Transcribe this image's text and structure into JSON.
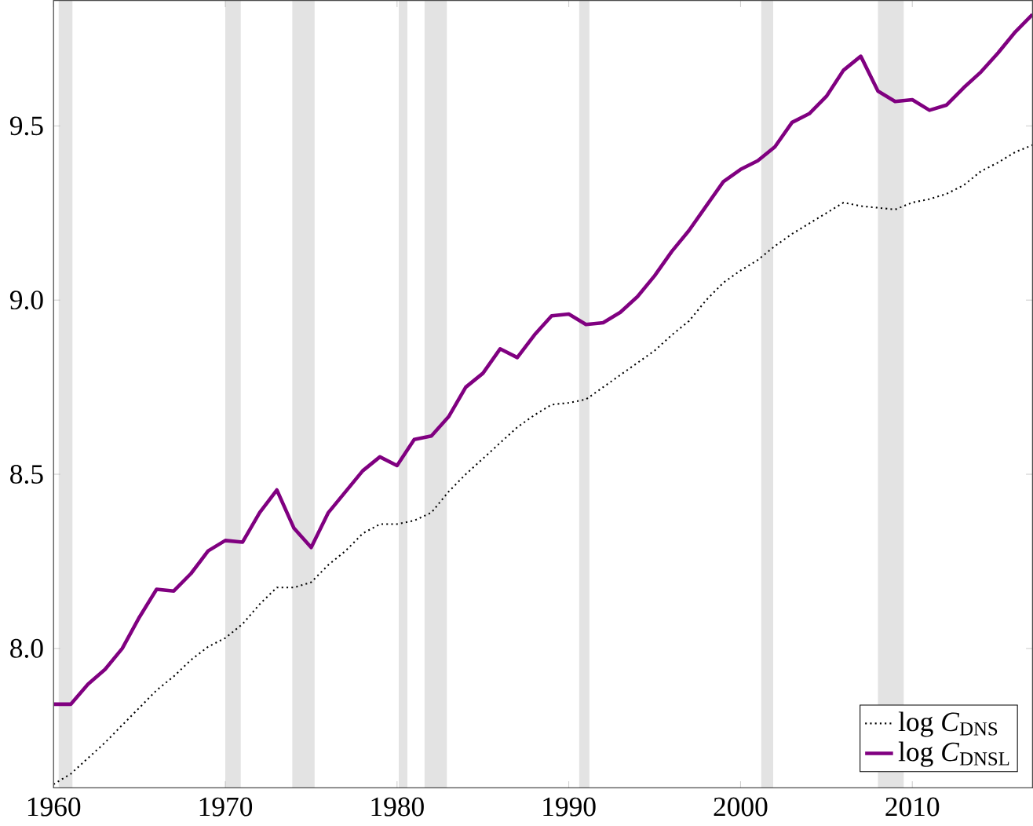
{
  "chart_data": {
    "type": "line",
    "x": [
      1960,
      1961,
      1962,
      1963,
      1964,
      1965,
      1966,
      1967,
      1968,
      1969,
      1970,
      1971,
      1972,
      1973,
      1974,
      1975,
      1976,
      1977,
      1978,
      1979,
      1980,
      1981,
      1982,
      1983,
      1984,
      1985,
      1986,
      1987,
      1988,
      1989,
      1990,
      1991,
      1992,
      1993,
      1994,
      1995,
      1996,
      1997,
      1998,
      1999,
      2000,
      2001,
      2002,
      2003,
      2004,
      2005,
      2006,
      2007,
      2008,
      2009,
      2010,
      2011,
      2012,
      2013,
      2014,
      2015,
      2016,
      2017
    ],
    "series": [
      {
        "name": "log *C*$_{DNS}$",
        "color": "#000000",
        "line_style": "dotted",
        "values": [
          7.61,
          7.64,
          7.685,
          7.73,
          7.78,
          7.83,
          7.88,
          7.92,
          7.967,
          8.005,
          8.03,
          8.07,
          8.127,
          8.175,
          8.175,
          8.19,
          8.24,
          8.28,
          8.33,
          8.357,
          8.357,
          8.367,
          8.39,
          8.45,
          8.5,
          8.545,
          8.59,
          8.635,
          8.67,
          8.7,
          8.705,
          8.715,
          8.75,
          8.785,
          8.82,
          8.855,
          8.9,
          8.94,
          9.0,
          9.05,
          9.085,
          9.115,
          9.155,
          9.19,
          9.22,
          9.25,
          9.28,
          9.27,
          9.265,
          9.26,
          9.28,
          9.29,
          9.305,
          9.33,
          9.37,
          9.395,
          9.425,
          9.445
        ]
      },
      {
        "name": "log *C*$_{DNSL}$",
        "color": "#800080",
        "line_style": "solid",
        "values": [
          7.84,
          7.84,
          7.897,
          7.94,
          8.0,
          8.09,
          8.17,
          8.165,
          8.215,
          8.28,
          8.31,
          8.305,
          8.39,
          8.455,
          8.345,
          8.29,
          8.39,
          8.45,
          8.51,
          8.55,
          8.525,
          8.6,
          8.61,
          8.665,
          8.75,
          8.79,
          8.86,
          8.835,
          8.9,
          8.955,
          8.96,
          8.93,
          8.935,
          8.965,
          9.01,
          9.07,
          9.14,
          9.2,
          9.27,
          9.34,
          9.375,
          9.4,
          9.44,
          9.51,
          9.535,
          9.585,
          9.66,
          9.7,
          9.6,
          9.57,
          9.575,
          9.545,
          9.56,
          9.61,
          9.655,
          9.71,
          9.77,
          9.82
        ]
      }
    ],
    "xlim": [
      1960,
      2017
    ],
    "ylim": [
      7.6,
      9.86
    ],
    "xticks": [
      1960,
      1970,
      1980,
      1990,
      2000,
      2010
    ],
    "yticks": [
      {
        "value": 8,
        "label": "8.0"
      },
      {
        "value": 8.5,
        "label": "8.5"
      },
      {
        "value": 9,
        "label": "9.0"
      },
      {
        "value": 9.5,
        "label": "9.5"
      }
    ],
    "bands": [
      {
        "axis": "x",
        "from": 1960.3,
        "to": 1961.1,
        "color": "#e3e3e3"
      },
      {
        "axis": "x",
        "from": 1970.0,
        "to": 1970.9,
        "color": "#e3e3e3"
      },
      {
        "axis": "x",
        "from": 1973.9,
        "to": 1975.2,
        "color": "#e3e3e3"
      },
      {
        "axis": "x",
        "from": 1980.1,
        "to": 1980.6,
        "color": "#e3e3e3"
      },
      {
        "axis": "x",
        "from": 1981.6,
        "to": 1982.9,
        "color": "#e3e3e3"
      },
      {
        "axis": "x",
        "from": 1990.6,
        "to": 1991.2,
        "color": "#e3e3e3"
      },
      {
        "axis": "x",
        "from": 2001.2,
        "to": 2001.9,
        "color": "#e3e3e3"
      },
      {
        "axis": "x",
        "from": 2008.0,
        "to": 2009.5,
        "color": "#e3e3e3"
      }
    ],
    "legend": "bottom right",
    "marker": "none"
  }
}
